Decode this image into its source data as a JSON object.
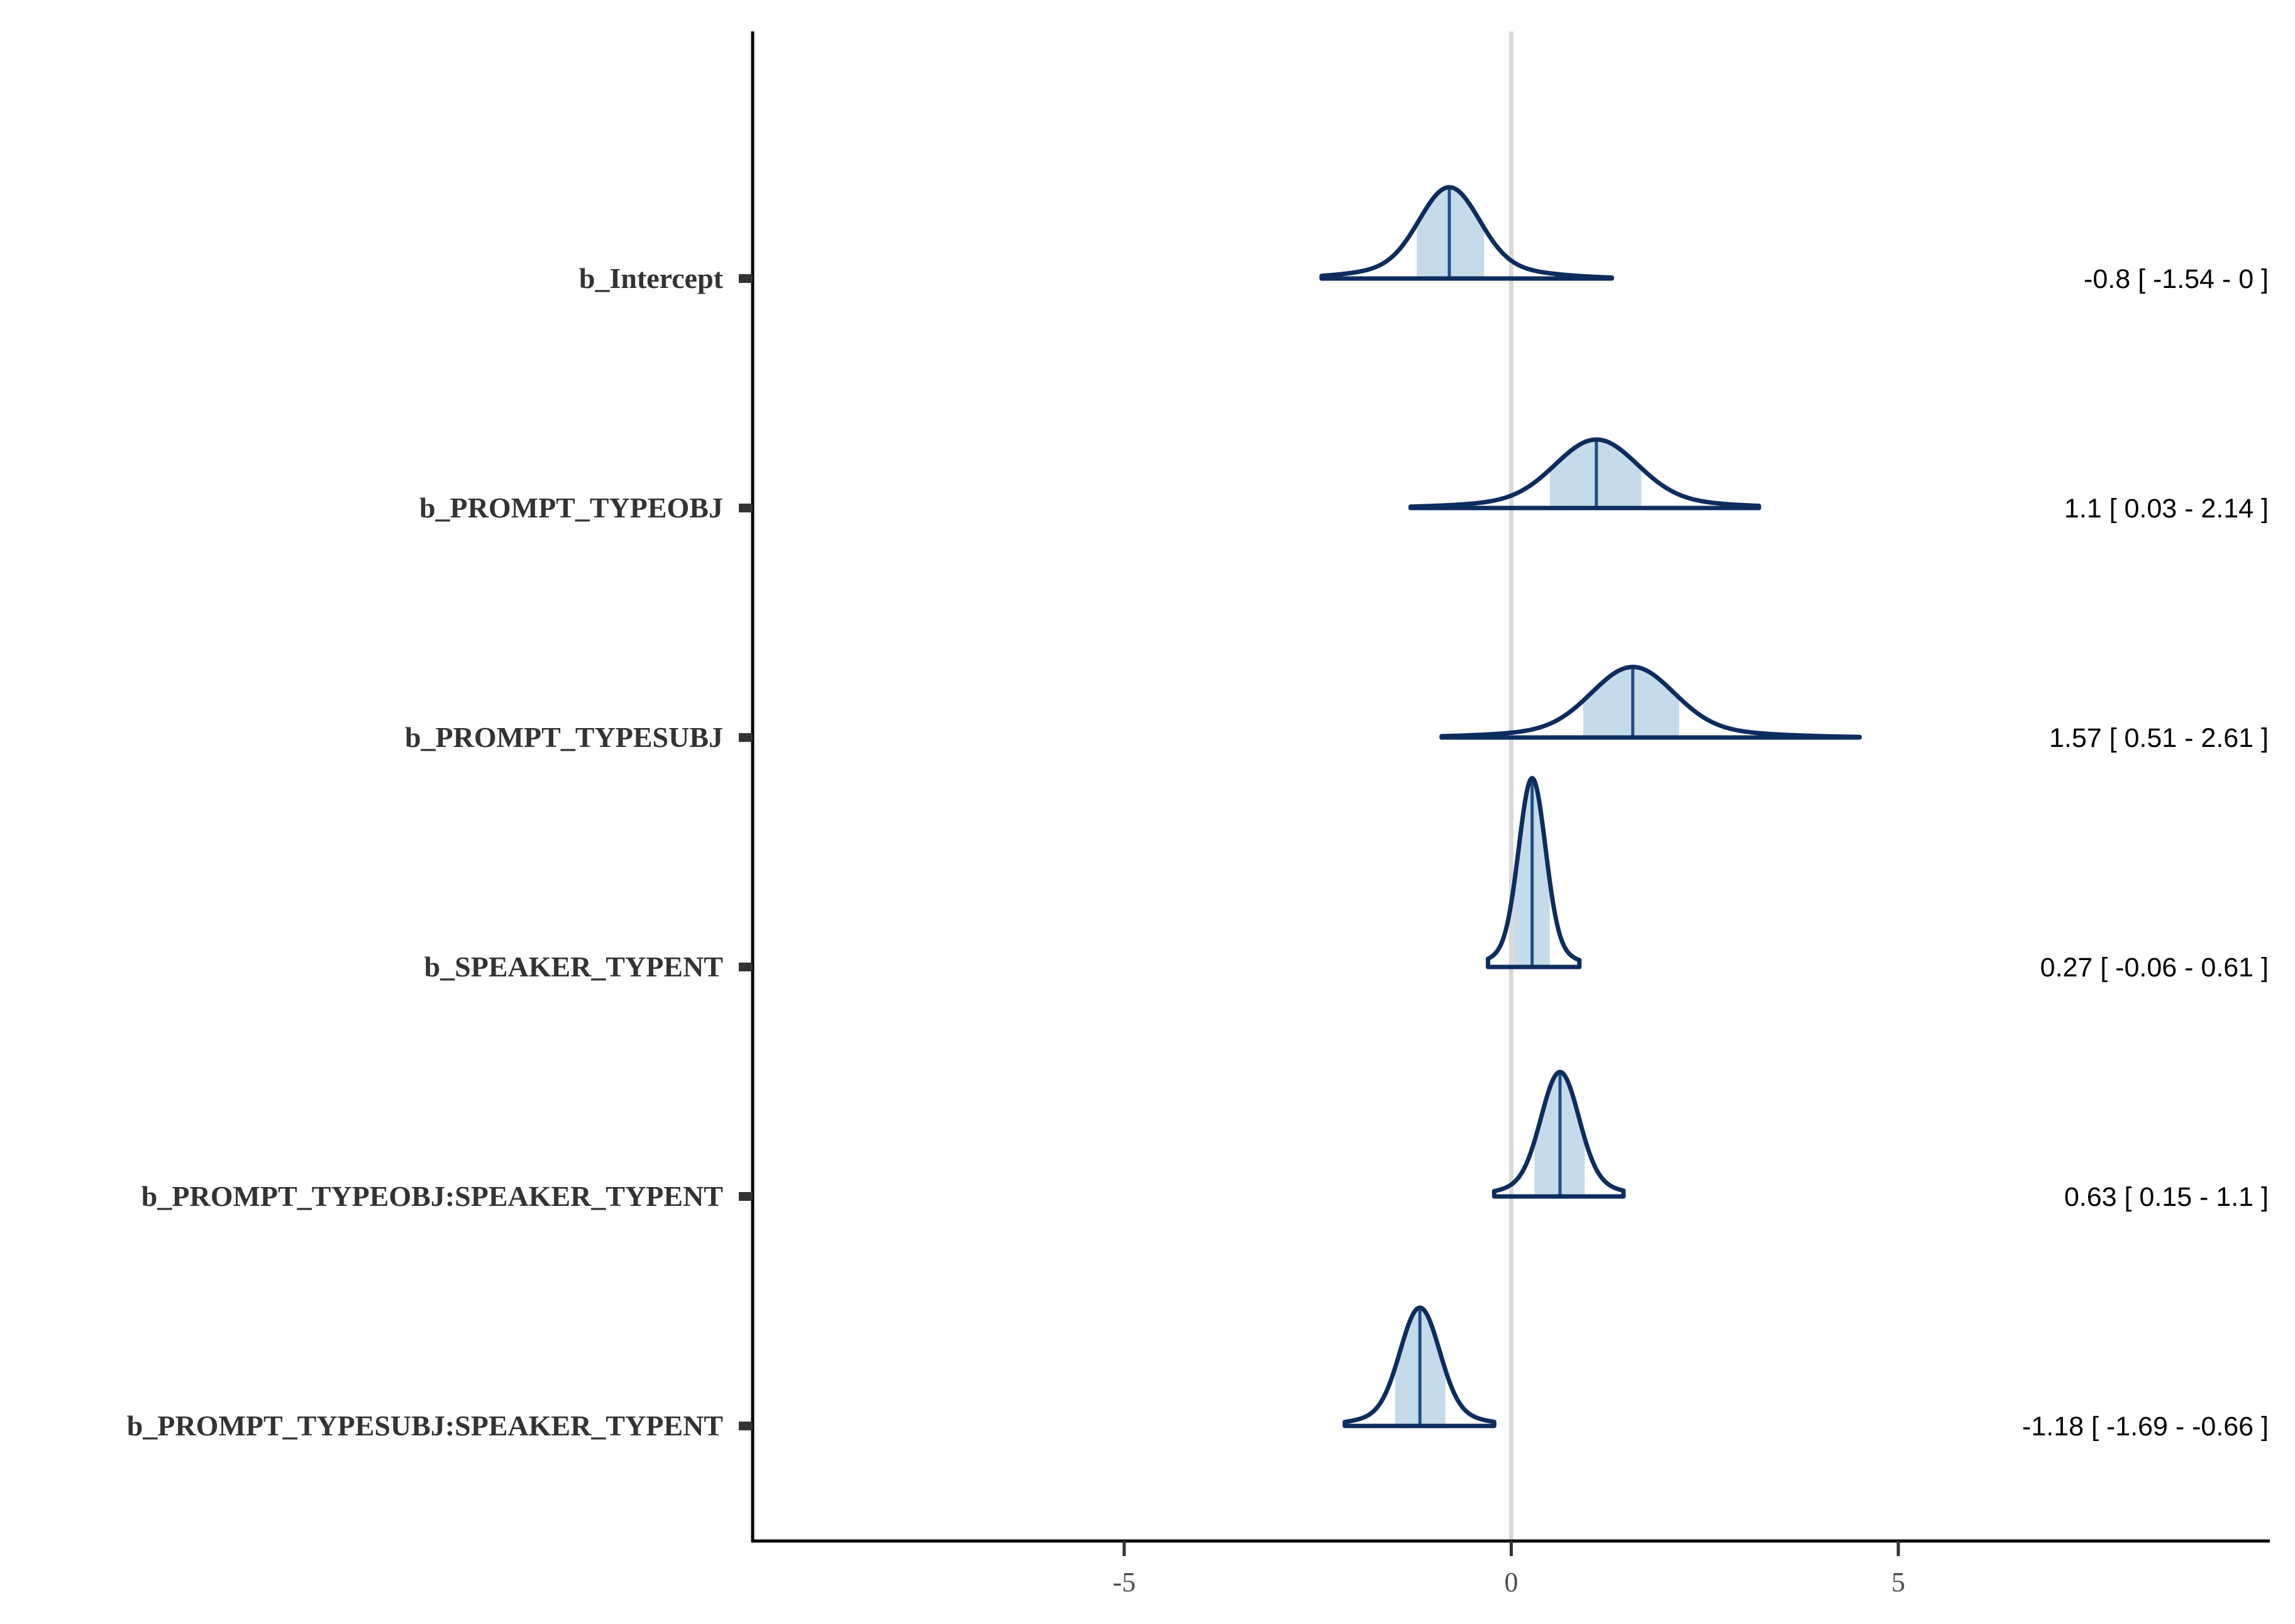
{
  "chart_data": {
    "type": "ridgeline",
    "xlim": [
      -9.8,
      9.8
    ],
    "x_ticks": [
      -5,
      0,
      5
    ],
    "x_tick_labels": [
      "-5",
      "0",
      "5"
    ],
    "reference_line_x": 0,
    "grid": false,
    "colors": {
      "outline": "#0d2d5e",
      "fill": "#c6dbea",
      "median": "#1f4e85",
      "reference": "#d9d9d9",
      "axis": "#000000",
      "tick": "#333333"
    },
    "series": [
      {
        "name": "b_Intercept",
        "median": -0.8,
        "ci": [
          -1.54,
          0
        ],
        "label": "-0.8 [ -1.54 - 0 ]",
        "range": [
          -2.45,
          1.3
        ],
        "sd": 0.38,
        "rel_height": 0.44,
        "shoulder": 0.18,
        "shade": [
          -1.22,
          -0.35
        ]
      },
      {
        "name": "b_PROMPT_TYPEOBJ",
        "median": 1.1,
        "ci": [
          0.03,
          2.14
        ],
        "label": "1.1 [ 0.03 - 2.14 ]",
        "range": [
          -1.3,
          3.2
        ],
        "sd": 0.52,
        "rel_height": 0.33,
        "shoulder": 0.15,
        "shade": [
          0.5,
          1.68
        ]
      },
      {
        "name": "b_PROMPT_TYPESUBJ",
        "median": 1.57,
        "ci": [
          0.51,
          2.61
        ],
        "label": "1.57 [ 0.51 - 2.61 ]",
        "range": [
          -0.9,
          4.5
        ],
        "sd": 0.52,
        "rel_height": 0.34,
        "shoulder": 0.15,
        "shade": [
          0.93,
          2.17
        ]
      },
      {
        "name": "b_SPEAKER_TYPENT",
        "median": 0.27,
        "ci": [
          -0.06,
          0.61
        ],
        "label": "0.27 [ -0.06 - 0.61 ]",
        "range": [
          -0.3,
          0.88
        ],
        "sd": 0.17,
        "rel_height": 0.91,
        "shoulder": 0.12,
        "shade": [
          0.03,
          0.5
        ]
      },
      {
        "name": "b_PROMPT_TYPEOBJ:SPEAKER_TYPENT",
        "median": 0.63,
        "ci": [
          0.15,
          1.1
        ],
        "label": "0.63 [ 0.15 - 1.1 ]",
        "range": [
          -0.22,
          1.45
        ],
        "sd": 0.24,
        "rel_height": 0.6,
        "shoulder": 0.14,
        "shade": [
          0.3,
          0.95
        ]
      },
      {
        "name": "b_PROMPT_TYPESUBJ:SPEAKER_TYPENT",
        "median": -1.18,
        "ci": [
          -1.69,
          -0.66
        ],
        "label": "-1.18 [ -1.69 - -0.66 ]",
        "range": [
          -2.15,
          -0.22
        ],
        "sd": 0.25,
        "rel_height": 0.57,
        "shoulder": 0.14,
        "shade": [
          -1.5,
          -0.85
        ]
      }
    ]
  }
}
